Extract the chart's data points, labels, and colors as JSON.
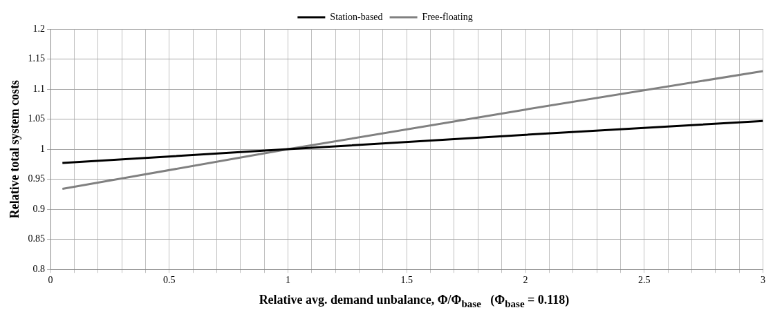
{
  "chart_data": {
    "type": "line",
    "xlabel": "Relative avg. demand unbalance, Φ/Φ$_{base}$   (Φ$_{base}$ = 0.118)",
    "ylabel": "Relative total system costs",
    "series": [
      {
        "name": "Station-based",
        "color": "#000000",
        "x": [
          0.05,
          1,
          2,
          3
        ],
        "values": [
          0.977,
          1.0,
          1.024,
          1.047
        ]
      },
      {
        "name": "Free-floating",
        "color": "#808080",
        "x": [
          0.05,
          1,
          2,
          3
        ],
        "values": [
          0.934,
          1.0,
          1.066,
          1.13
        ]
      }
    ],
    "xlim": [
      0,
      3
    ],
    "xticks": [
      0,
      {
        "value": 0.1,
        "label": null
      },
      {
        "value": 0.2,
        "label": null
      },
      {
        "value": 0.3,
        "label": null
      },
      {
        "value": 0.4,
        "label": null
      },
      0.5,
      {
        "value": 0.6,
        "label": null
      },
      {
        "value": 0.7,
        "label": null
      },
      {
        "value": 0.8,
        "label": null
      },
      {
        "value": 0.9,
        "label": null
      },
      1,
      {
        "value": 1.1,
        "label": null
      },
      {
        "value": 1.2,
        "label": null
      },
      {
        "value": 1.3,
        "label": null
      },
      {
        "value": 1.4,
        "label": null
      },
      1.5,
      {
        "value": 1.6,
        "label": null
      },
      {
        "value": 1.7,
        "label": null
      },
      {
        "value": 1.8,
        "label": null
      },
      {
        "value": 1.9,
        "label": null
      },
      2,
      {
        "value": 2.1,
        "label": null
      },
      {
        "value": 2.2,
        "label": null
      },
      {
        "value": 2.3,
        "label": null
      },
      {
        "value": 2.4,
        "label": null
      },
      2.5,
      {
        "value": 2.6,
        "label": null
      },
      {
        "value": 2.7,
        "label": null
      },
      {
        "value": 2.8,
        "label": null
      },
      {
        "value": 2.9,
        "label": null
      },
      3
    ],
    "ylim": [
      0.8,
      1.2
    ],
    "yticks": [
      0.8,
      0.85,
      0.9,
      0.95,
      1,
      1.05,
      1.1,
      1.15,
      1.2
    ],
    "grid": true,
    "legend": "top",
    "line_style": "solid",
    "marker": "none"
  }
}
